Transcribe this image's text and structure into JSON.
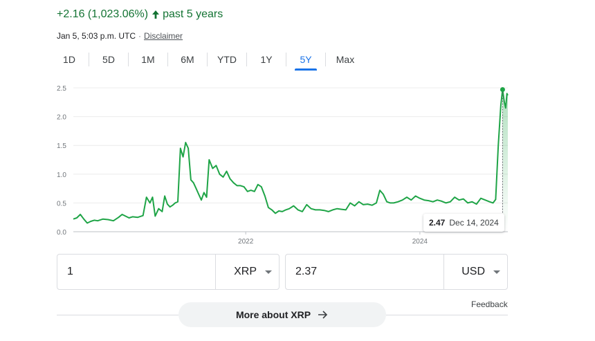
{
  "header": {
    "change_text": "+2.16 (1,023.06%)",
    "period_text": "past 5 years",
    "timestamp": "Jan 5, 5:03 p.m. UTC",
    "disclaimer_label": "Disclaimer"
  },
  "tabs": [
    {
      "label": "1D",
      "active": false
    },
    {
      "label": "5D",
      "active": false
    },
    {
      "label": "1M",
      "active": false
    },
    {
      "label": "6M",
      "active": false
    },
    {
      "label": "YTD",
      "active": false
    },
    {
      "label": "1Y",
      "active": false
    },
    {
      "label": "5Y",
      "active": true
    },
    {
      "label": "Max",
      "active": false
    }
  ],
  "colors": {
    "accent": "#1a73e8",
    "positive": "#137333",
    "line": "#1ea446"
  },
  "chart_data": {
    "type": "line",
    "title": "",
    "xlabel": "",
    "ylabel": "",
    "ylim": [
      0,
      2.5
    ],
    "yticks": [
      "2.5",
      "2.0",
      "1.5",
      "1.0",
      "0.5",
      "0.0"
    ],
    "xlim": [
      2020.02,
      2025.01
    ],
    "xticks": [
      {
        "x": 2022.0,
        "label": "2022"
      },
      {
        "x": 2024.0,
        "label": "2024"
      }
    ],
    "grid": true,
    "legend": "none",
    "series": [
      {
        "x": [
          2020.02,
          2020.06,
          2020.1,
          2020.14,
          2020.18,
          2020.22,
          2020.26,
          2020.3,
          2020.36,
          2020.42,
          2020.48,
          2020.54,
          2020.58,
          2020.62,
          2020.66,
          2020.7,
          2020.76,
          2020.82,
          2020.86,
          2020.9,
          2020.93,
          2020.96,
          2021.0,
          2021.04,
          2021.07,
          2021.1,
          2021.13,
          2021.16,
          2021.19,
          2021.22,
          2021.25,
          2021.28,
          2021.31,
          2021.34,
          2021.37,
          2021.4,
          2021.43,
          2021.46,
          2021.49,
          2021.52,
          2021.55,
          2021.58,
          2021.62,
          2021.66,
          2021.7,
          2021.74,
          2021.78,
          2021.82,
          2021.86,
          2021.9,
          2021.94,
          2021.98,
          2022.02,
          2022.06,
          2022.1,
          2022.14,
          2022.18,
          2022.22,
          2022.26,
          2022.3,
          2022.34,
          2022.38,
          2022.42,
          2022.46,
          2022.5,
          2022.55,
          2022.6,
          2022.65,
          2022.7,
          2022.75,
          2022.8,
          2022.85,
          2022.9,
          2022.95,
          2023.0,
          2023.05,
          2023.1,
          2023.15,
          2023.2,
          2023.25,
          2023.3,
          2023.35,
          2023.4,
          2023.45,
          2023.5,
          2023.54,
          2023.58,
          2023.62,
          2023.66,
          2023.7,
          2023.75,
          2023.8,
          2023.85,
          2023.9,
          2023.95,
          2024.0,
          2024.05,
          2024.1,
          2024.15,
          2024.2,
          2024.25,
          2024.3,
          2024.35,
          2024.4,
          2024.45,
          2024.5,
          2024.55,
          2024.6,
          2024.65,
          2024.7,
          2024.75,
          2024.8,
          2024.84,
          2024.87,
          2024.9,
          2024.93,
          2024.95,
          2024.97,
          2024.985,
          2025.0,
          2025.01
        ],
        "y": [
          0.22,
          0.24,
          0.3,
          0.22,
          0.15,
          0.18,
          0.2,
          0.19,
          0.22,
          0.21,
          0.19,
          0.25,
          0.3,
          0.27,
          0.24,
          0.26,
          0.25,
          0.28,
          0.6,
          0.5,
          0.6,
          0.27,
          0.4,
          0.35,
          0.62,
          0.48,
          0.43,
          0.46,
          0.5,
          0.52,
          1.45,
          1.3,
          1.55,
          1.45,
          0.9,
          0.85,
          0.75,
          0.65,
          0.55,
          0.68,
          0.6,
          1.25,
          1.1,
          1.15,
          1.0,
          0.95,
          1.05,
          0.92,
          0.85,
          0.8,
          0.8,
          0.78,
          0.7,
          0.72,
          0.7,
          0.82,
          0.78,
          0.62,
          0.42,
          0.38,
          0.32,
          0.36,
          0.35,
          0.38,
          0.4,
          0.45,
          0.38,
          0.35,
          0.47,
          0.4,
          0.38,
          0.38,
          0.37,
          0.35,
          0.38,
          0.4,
          0.39,
          0.38,
          0.5,
          0.45,
          0.52,
          0.47,
          0.48,
          0.46,
          0.5,
          0.72,
          0.65,
          0.52,
          0.5,
          0.5,
          0.52,
          0.55,
          0.6,
          0.55,
          0.62,
          0.58,
          0.55,
          0.54,
          0.52,
          0.55,
          0.53,
          0.5,
          0.52,
          0.6,
          0.55,
          0.57,
          0.5,
          0.52,
          0.48,
          0.58,
          0.55,
          0.52,
          0.5,
          0.56,
          1.5,
          2.2,
          2.47,
          2.25,
          2.15,
          2.4,
          2.37
        ]
      }
    ],
    "highlight": {
      "value": "2.47",
      "date": "Dec 14, 2024",
      "x": 2024.95,
      "y": 2.47
    }
  },
  "converter": {
    "from_value": "1",
    "from_unit": "XRP",
    "to_value": "2.37",
    "to_unit": "USD"
  },
  "feedback_label": "Feedback",
  "more_button_label": "More about XRP"
}
